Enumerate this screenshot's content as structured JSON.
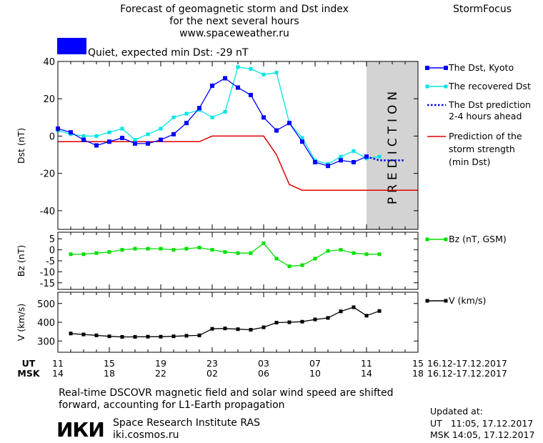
{
  "header": {
    "title_line1": "Forecast of geomagnetic storm and Dst index",
    "title_line2": "for the next several hours",
    "website": "www.spaceweather.ru",
    "brand": "StormFocus",
    "status_text": "Quiet, expected min Dst: -29 nT",
    "status_color": "#0000ff"
  },
  "prediction_label": "PREDICTION",
  "legend": {
    "dst_kyoto": "The Dst, Kyoto",
    "recovered_dst": "The recovered Dst",
    "dst_prediction_1": "The Dst prediction",
    "dst_prediction_2": "2-4 hours ahead",
    "storm_strength_1": "Prediction of the",
    "storm_strength_2": "storm strength",
    "storm_strength_3": "(min Dst)",
    "bz": "Bz (nT, GSM)",
    "v": "V (km/s)"
  },
  "time_axis": {
    "ut_label": "UT",
    "msk_label": "MSK",
    "ut_ticks": [
      "11",
      "15",
      "19",
      "23",
      "03",
      "07",
      "11",
      "15"
    ],
    "msk_ticks": [
      "14",
      "18",
      "22",
      "02",
      "06",
      "10",
      "14",
      "18"
    ],
    "range_ut": "16.12-17.12.2017",
    "range_msk": "16.12-17.12.2017"
  },
  "footer": {
    "note_line1": "Real-time DSCOVR magnetic field and solar wind speed are shifted",
    "note_line2": "forward, accounting for L1-Earth propagation",
    "logo_text": "ИКИ",
    "institute": "Space Research Institute RAS",
    "institute_url": "iki.cosmos.ru",
    "updated_label": "Updated at:",
    "updated_ut": "UT   11:05, 17.12.2017",
    "updated_msk": "MSK 14:05, 17.12.2017"
  },
  "chart_data": [
    {
      "type": "line",
      "ylabel": "Dst (nT)",
      "xlim": [
        11,
        39
      ],
      "ylim": [
        -50,
        40
      ],
      "yticks": [
        -40,
        -20,
        0,
        20,
        40
      ],
      "prediction_region": [
        35,
        39
      ],
      "colors": {
        "dst_kyoto": "#0000ff",
        "recovered_dst": "#00e5e5",
        "dst_prediction": "#0000ff",
        "storm_strength": "#e00000",
        "prediction_bg": "#d3d3d3"
      },
      "series": [
        {
          "name": "The Dst, Kyoto",
          "x": [
            11,
            12,
            13,
            14,
            15,
            16,
            17,
            18,
            19,
            20,
            21,
            22,
            23,
            24,
            25,
            26,
            27,
            28,
            29,
            30,
            31,
            32,
            33,
            34,
            35
          ],
          "y": [
            4,
            2,
            -2,
            -5,
            -3,
            -1,
            -4,
            -4,
            -2,
            1,
            7,
            15,
            27,
            31,
            26,
            22,
            10,
            3,
            7,
            -3,
            -14,
            -16,
            -13,
            -14,
            -11
          ]
        },
        {
          "name": "The recovered Dst",
          "x": [
            11,
            12,
            13,
            14,
            15,
            16,
            17,
            18,
            19,
            20,
            21,
            22,
            23,
            24,
            25,
            26,
            27,
            28,
            29,
            30,
            31,
            32,
            33,
            34,
            35,
            36
          ],
          "y": [
            3,
            1,
            0,
            0,
            2,
            4,
            -2,
            1,
            4,
            10,
            12,
            14,
            10,
            13,
            37,
            36,
            33,
            34,
            7,
            -1,
            -13,
            -15,
            -11,
            -8,
            -12,
            -11
          ]
        },
        {
          "name": "The Dst prediction 2-4 hours ahead",
          "x": [
            35,
            36,
            37,
            38
          ],
          "y": [
            -11,
            -13,
            -13,
            -13
          ]
        },
        {
          "name": "Prediction of the storm strength (min Dst)",
          "x": [
            11,
            14,
            17,
            20,
            22,
            23,
            24,
            26,
            27,
            28,
            29,
            30,
            31,
            33,
            35,
            37,
            39
          ],
          "y": [
            -3,
            -3,
            -3,
            -3,
            -3,
            0,
            0,
            0,
            0,
            -10,
            -26,
            -29,
            -29,
            -29,
            -29,
            -29,
            -29
          ]
        }
      ]
    },
    {
      "type": "line",
      "ylabel": "Bz (nT)",
      "xlim": [
        11,
        39
      ],
      "ylim": [
        -18,
        8
      ],
      "yticks": [
        -15,
        -10,
        -5,
        0,
        5
      ],
      "colors": {
        "bz": "#00e000"
      },
      "series": [
        {
          "name": "Bz (nT, GSM)",
          "x": [
            12,
            13,
            14,
            15,
            16,
            17,
            18,
            19,
            20,
            21,
            22,
            23,
            24,
            25,
            26,
            27,
            28,
            29,
            30,
            31,
            32,
            33,
            34,
            35,
            36
          ],
          "y": [
            -2,
            -2,
            -1.5,
            -1,
            0,
            0.5,
            0.5,
            0.5,
            0,
            0.5,
            1,
            0,
            -1,
            -1.5,
            -1.5,
            3,
            -4,
            -7.5,
            -7,
            -4,
            -0.5,
            0,
            -1.5,
            -2,
            -2
          ]
        }
      ]
    },
    {
      "type": "line",
      "ylabel": "V (km/s)",
      "xlim": [
        11,
        39
      ],
      "ylim": [
        240,
        560
      ],
      "yticks": [
        300,
        400,
        500
      ],
      "colors": {
        "v": "#000000"
      },
      "series": [
        {
          "name": "V (km/s)",
          "x": [
            12,
            13,
            14,
            15,
            16,
            17,
            18,
            19,
            20,
            21,
            22,
            23,
            24,
            25,
            26,
            27,
            28,
            29,
            30,
            31,
            32,
            33,
            34,
            35,
            36
          ],
          "y": [
            340,
            335,
            330,
            325,
            322,
            322,
            323,
            323,
            325,
            328,
            330,
            365,
            367,
            363,
            360,
            373,
            398,
            400,
            403,
            415,
            423,
            458,
            480,
            435,
            460
          ]
        }
      ]
    }
  ]
}
